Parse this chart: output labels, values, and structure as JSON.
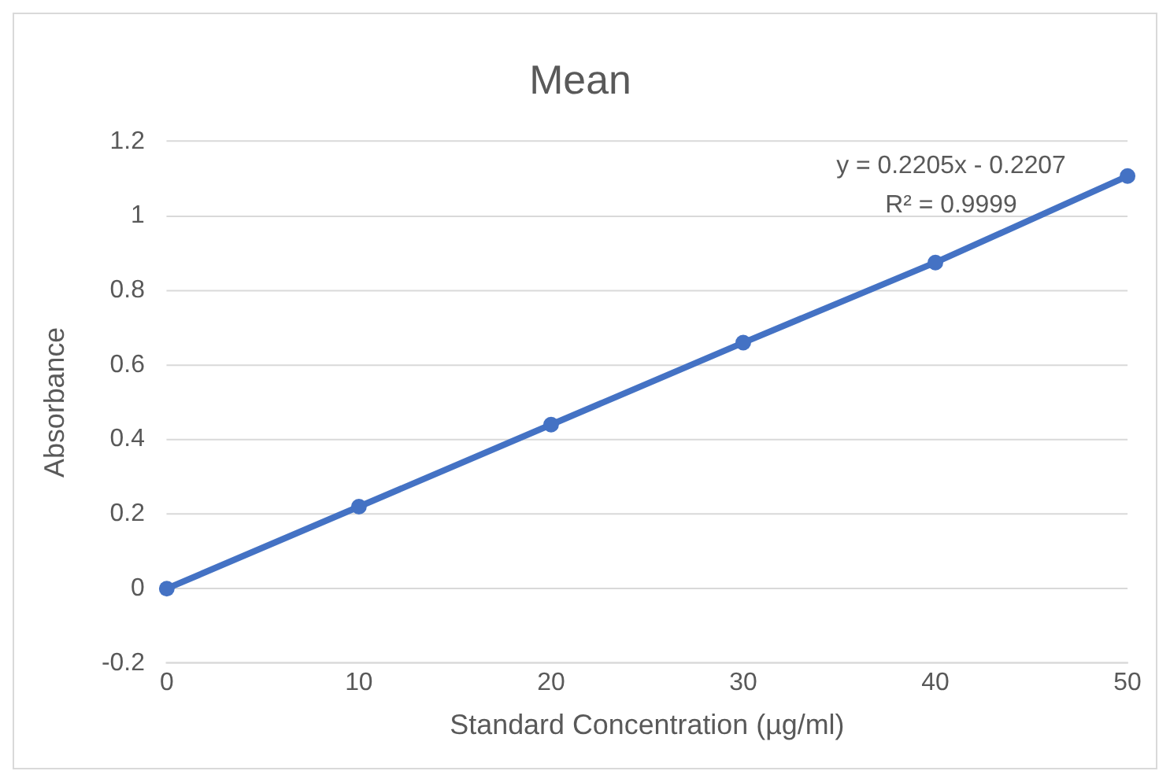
{
  "chart_data": {
    "type": "line",
    "title": "Mean",
    "xlabel": "Standard Concentration (µg/ml)",
    "ylabel": "Absorbance",
    "categories": [
      "0",
      "10",
      "20",
      "30",
      "40",
      "50"
    ],
    "series": [
      {
        "color": "#4472c4",
        "values": [
          0,
          0.22,
          0.44,
          0.66,
          0.875,
          1.107
        ]
      }
    ],
    "ylim": [
      -0.2,
      1.2
    ],
    "yticks": [
      -0.2,
      0,
      0.2,
      0.4,
      0.6,
      0.8,
      1,
      1.2
    ],
    "grid": "y",
    "legend": false,
    "marker": "circle",
    "line_style": "solid",
    "annotations": [
      "y = 0.2205x - 0.2207",
      "R² = 0.9999"
    ]
  }
}
